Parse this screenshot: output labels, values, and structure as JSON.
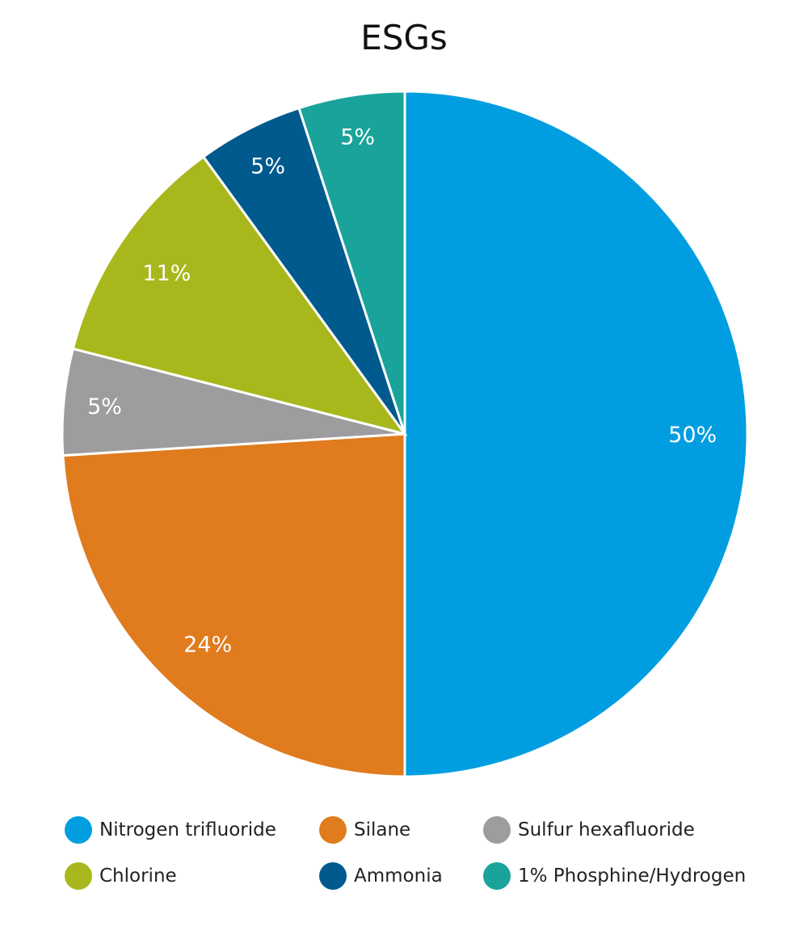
{
  "chart_data": {
    "type": "pie",
    "title": "ESGs",
    "start": "top",
    "direction": "clockwise",
    "slices": [
      {
        "name": "Nitrogen trifluoride",
        "value": 50,
        "label": "50%",
        "color": "#009ee0"
      },
      {
        "name": "Silane",
        "value": 24,
        "label": "24%",
        "color": "#e07b1e"
      },
      {
        "name": "Sulfur hexafluoride",
        "value": 5,
        "label": "5%",
        "color": "#9d9d9f"
      },
      {
        "name": "Chlorine",
        "value": 11,
        "label": "11%",
        "color": "#a8b81c"
      },
      {
        "name": "Ammonia",
        "value": 5,
        "label": "5%",
        "color": "#005a8e"
      },
      {
        "name": "1% Phosphine/Hydrogen",
        "value": 5,
        "label": "5%",
        "color": "#1aa39a"
      }
    ],
    "legend_placement": "bottom",
    "legend_order": [
      0,
      1,
      2,
      3,
      4,
      5
    ]
  }
}
